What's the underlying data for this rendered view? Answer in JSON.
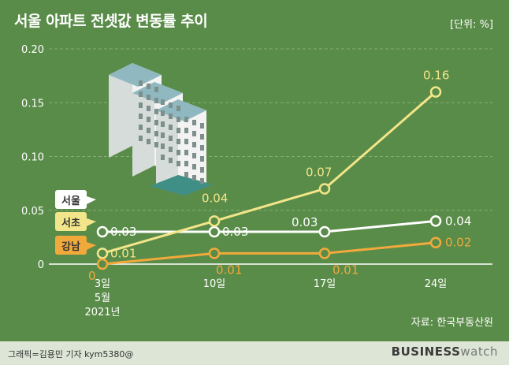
{
  "header": {
    "title": "서울 아파트 전셋값 변동률 추이",
    "unit": "[단위: %]"
  },
  "footer": {
    "source": "자료: 한국부동산원",
    "credit": "그래픽=김용민 기자 kym5380@",
    "brand_bold": "BUSINESS",
    "brand_light": "watch"
  },
  "chart_data": {
    "type": "line",
    "categories": [
      "3일",
      "10일",
      "17일",
      "24일"
    ],
    "x_sublabels": [
      "5월",
      "2021년"
    ],
    "ylim": [
      0,
      0.2
    ],
    "yticks": [
      0,
      0.05,
      0.1,
      0.15,
      0.2
    ],
    "ytick_labels": [
      "0",
      "0.05",
      "0.10",
      "0.15",
      "0.20"
    ],
    "grid": true,
    "series": [
      {
        "name": "서울",
        "values": [
          0.03,
          0.03,
          0.03,
          0.04
        ],
        "labels": [
          "0.03",
          "0.03",
          "0.03",
          "0.04"
        ],
        "color": "#ffffff",
        "tag_text": "#333333"
      },
      {
        "name": "서초",
        "values": [
          0.01,
          0.04,
          0.07,
          0.16
        ],
        "labels": [
          "0.01",
          "0.04",
          "0.07",
          "0.16"
        ],
        "color": "#f3e68a",
        "tag_text": "#333333"
      },
      {
        "name": "강남",
        "values": [
          0,
          0.01,
          0.01,
          0.02
        ],
        "labels": [
          "0",
          "0.01",
          "0.01",
          "0.02"
        ],
        "color": "#f2a93b",
        "tag_text": "#333333"
      }
    ]
  },
  "icons": {
    "illustration": "apartment-buildings-icon"
  }
}
